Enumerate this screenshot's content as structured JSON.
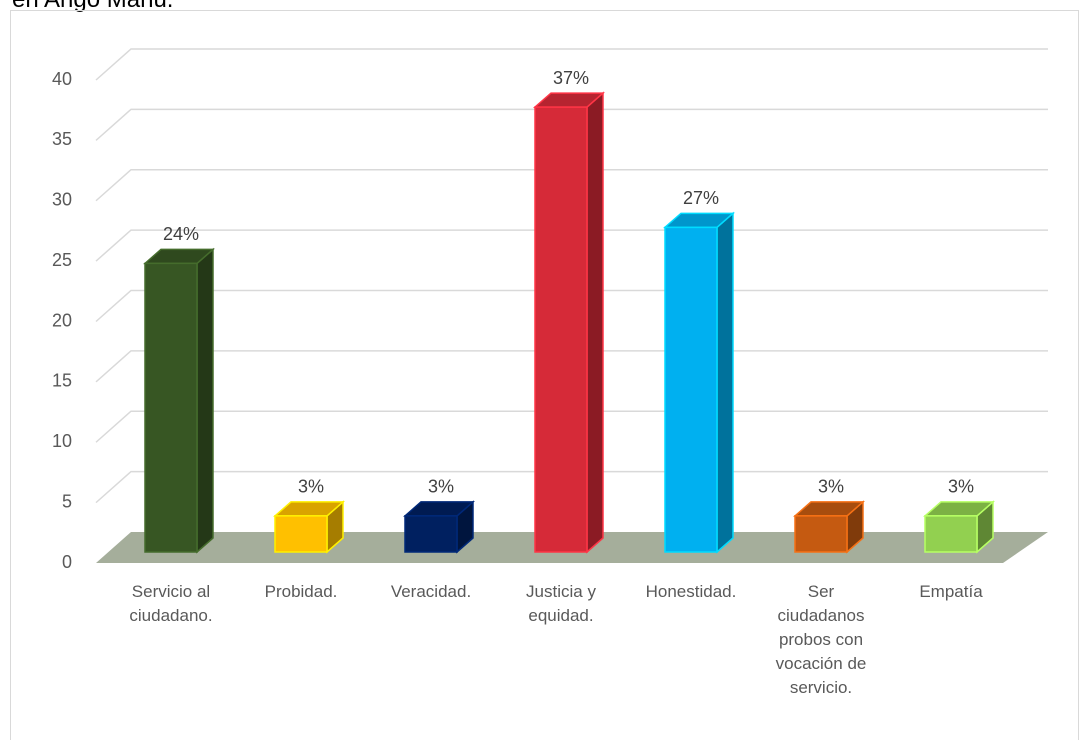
{
  "chart_data": {
    "type": "bar3d",
    "title": "en Ango Mañu.",
    "categories": [
      "Servicio al ciudadano.",
      "Probidad.",
      "Veracidad.",
      "Justicia y equidad.",
      "Honestidad.",
      "Ser ciudadanos probos con vocación de servicio.",
      "Empatía"
    ],
    "values": [
      24,
      3,
      3,
      37,
      27,
      3,
      3
    ],
    "value_labels": [
      "24%",
      "3%",
      "3%",
      "37%",
      "27%",
      "3%",
      "3%"
    ],
    "colors": [
      "#375623",
      "#ffc000",
      "#002060",
      "#d62a38",
      "#00b0f0",
      "#c55a11",
      "#92d050"
    ],
    "ylim": [
      0,
      40
    ],
    "yticks": [
      0,
      5,
      10,
      15,
      20,
      25,
      30,
      35,
      40
    ],
    "grid": true
  }
}
